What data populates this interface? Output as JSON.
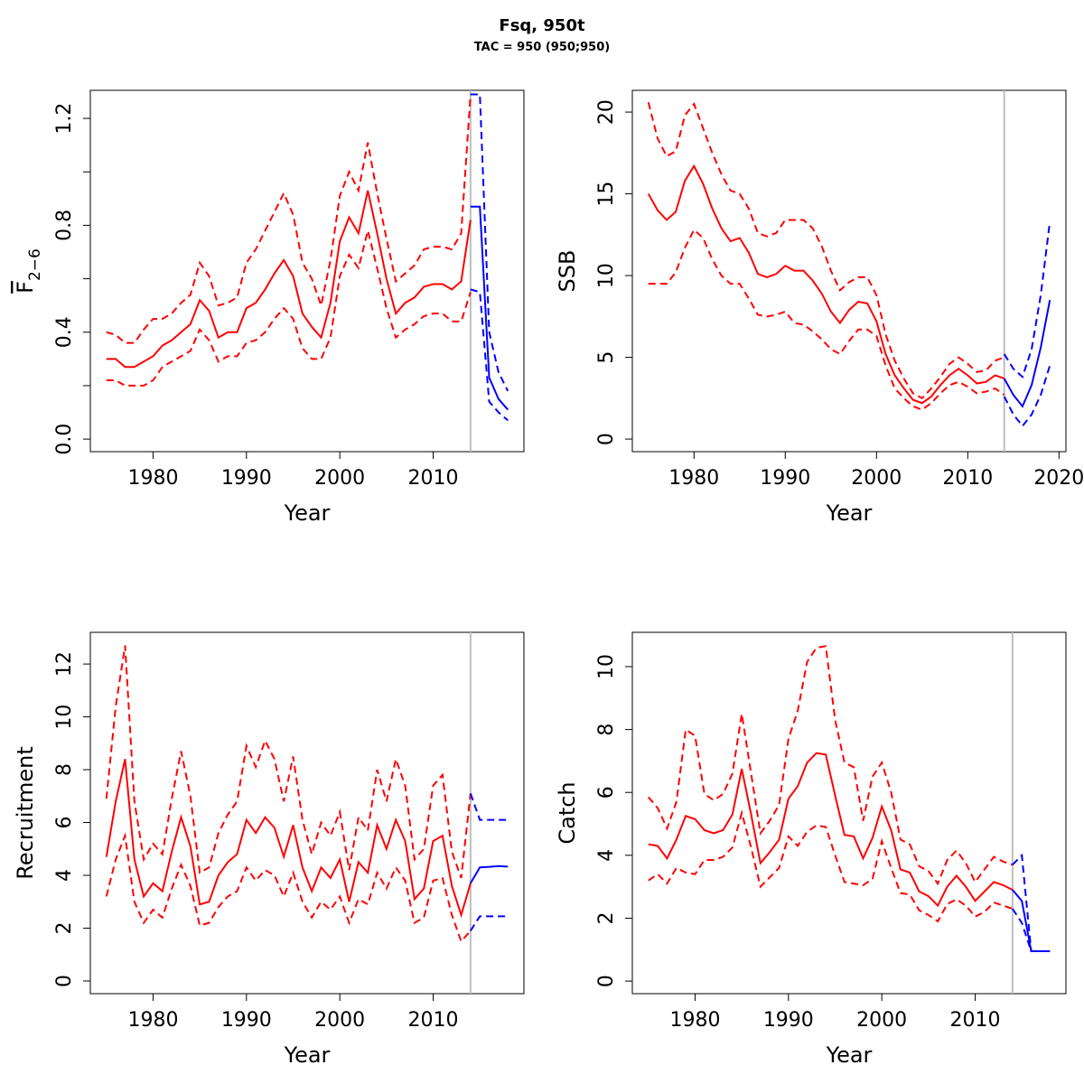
{
  "title": "Fsq, 950t",
  "subtitle": "TAC = 950 (950;950)",
  "chart_data": [
    {
      "type": "line",
      "xlabel": "Year",
      "ylabel": "F",
      "ylabel_subscript": "2−6",
      "xlim": [
        1973.28,
        2019.72
      ],
      "ylim": [
        -0.047,
        1.305
      ],
      "xticks": [
        1980,
        1990,
        2000,
        2010
      ],
      "yticks": [
        {
          "value": 0,
          "label": "0.0"
        },
        0.4,
        0.8,
        1.2
      ],
      "yminorticks": [
        0.2,
        0.6,
        1.0
      ],
      "vline": {
        "x": 2014,
        "color": "#bebebe"
      },
      "x": [
        1975,
        1976,
        1977,
        1978,
        1979,
        1980,
        1981,
        1982,
        1983,
        1984,
        1985,
        1986,
        1987,
        1988,
        1989,
        1990,
        1991,
        1992,
        1993,
        1994,
        1995,
        1996,
        1997,
        1998,
        1999,
        2000,
        2001,
        2002,
        2003,
        2004,
        2005,
        2006,
        2007,
        2008,
        2009,
        2010,
        2011,
        2012,
        2013,
        2014
      ],
      "series": [
        {
          "color": "#ff0000",
          "dashed": false,
          "values": [
            0.3,
            0.3,
            0.27,
            0.27,
            0.29,
            0.31,
            0.35,
            0.37,
            0.4,
            0.43,
            0.52,
            0.48,
            0.38,
            0.4,
            0.4,
            0.49,
            0.51,
            0.56,
            0.62,
            0.67,
            0.61,
            0.47,
            0.42,
            0.38,
            0.51,
            0.74,
            0.83,
            0.77,
            0.93,
            0.77,
            0.6,
            0.47,
            0.51,
            0.53,
            0.57,
            0.58,
            0.58,
            0.56,
            0.59,
            0.82
          ]
        },
        {
          "color": "#ff0000",
          "dashed": true,
          "values": [
            0.4,
            0.39,
            0.36,
            0.36,
            0.41,
            0.45,
            0.45,
            0.47,
            0.51,
            0.54,
            0.66,
            0.61,
            0.5,
            0.51,
            0.53,
            0.66,
            0.71,
            0.78,
            0.85,
            0.92,
            0.84,
            0.66,
            0.6,
            0.5,
            0.67,
            0.91,
            1.0,
            0.93,
            1.11,
            0.92,
            0.75,
            0.59,
            0.62,
            0.65,
            0.71,
            0.72,
            0.72,
            0.71,
            0.77,
            1.29
          ]
        },
        {
          "color": "#ff0000",
          "dashed": true,
          "values": [
            0.22,
            0.22,
            0.2,
            0.2,
            0.2,
            0.22,
            0.27,
            0.29,
            0.31,
            0.33,
            0.41,
            0.37,
            0.29,
            0.31,
            0.31,
            0.36,
            0.37,
            0.4,
            0.45,
            0.49,
            0.45,
            0.34,
            0.3,
            0.3,
            0.38,
            0.61,
            0.69,
            0.64,
            0.78,
            0.64,
            0.49,
            0.38,
            0.41,
            0.43,
            0.46,
            0.47,
            0.47,
            0.44,
            0.44,
            0.55
          ]
        },
        {
          "color": "#0000ff",
          "dashed": false,
          "x": [
            2014,
            2015,
            2016,
            2017,
            2018
          ],
          "values": [
            0.87,
            0.87,
            0.23,
            0.15,
            0.11
          ]
        },
        {
          "color": "#0000ff",
          "dashed": true,
          "x": [
            2014,
            2015,
            2016,
            2017,
            2018
          ],
          "values": [
            1.29,
            1.29,
            0.4,
            0.25,
            0.18
          ]
        },
        {
          "color": "#0000ff",
          "dashed": true,
          "x": [
            2014,
            2015,
            2016,
            2017,
            2018
          ],
          "values": [
            0.56,
            0.55,
            0.14,
            0.1,
            0.07
          ]
        }
      ]
    },
    {
      "type": "line",
      "xlabel": "Year",
      "ylabel": "SSB",
      "xlim": [
        1973.24,
        2020.76
      ],
      "ylim": [
        -0.77,
        21.33
      ],
      "xticks": [
        1980,
        1990,
        2000,
        2010,
        2020
      ],
      "yticks": [
        0,
        5,
        10,
        15,
        20
      ],
      "vline": {
        "x": 2014,
        "color": "#bebebe"
      },
      "x": [
        1975,
        1976,
        1977,
        1978,
        1979,
        1980,
        1981,
        1982,
        1983,
        1984,
        1985,
        1986,
        1987,
        1988,
        1989,
        1990,
        1991,
        1992,
        1993,
        1994,
        1995,
        1996,
        1997,
        1998,
        1999,
        2000,
        2001,
        2002,
        2003,
        2004,
        2005,
        2006,
        2007,
        2008,
        2009,
        2010,
        2011,
        2012,
        2013,
        2014
      ],
      "series": [
        {
          "color": "#ff0000",
          "dashed": false,
          "values": [
            15.0,
            14.0,
            13.4,
            13.9,
            15.8,
            16.7,
            15.6,
            14.1,
            12.9,
            12.1,
            12.3,
            11.4,
            10.1,
            9.9,
            10.1,
            10.6,
            10.3,
            10.3,
            9.7,
            8.9,
            7.8,
            7.1,
            7.9,
            8.4,
            8.3,
            7.2,
            5.2,
            3.9,
            3.1,
            2.4,
            2.2,
            2.6,
            3.3,
            3.9,
            4.3,
            3.9,
            3.4,
            3.5,
            3.9,
            3.7
          ]
        },
        {
          "color": "#ff0000",
          "dashed": true,
          "values": [
            20.6,
            18.4,
            17.3,
            17.6,
            19.8,
            20.5,
            19.0,
            17.5,
            16.2,
            15.2,
            15.0,
            14.1,
            12.6,
            12.4,
            12.6,
            13.4,
            13.4,
            13.4,
            12.9,
            11.8,
            10.3,
            9.1,
            9.6,
            9.9,
            9.9,
            8.8,
            6.4,
            4.8,
            3.7,
            2.8,
            2.5,
            3.1,
            3.8,
            4.6,
            5.0,
            4.6,
            4.1,
            4.2,
            4.8,
            5.0
          ]
        },
        {
          "color": "#ff0000",
          "dashed": true,
          "values": [
            9.5,
            9.5,
            9.5,
            10.2,
            11.7,
            12.8,
            12.3,
            11.0,
            10.0,
            9.5,
            9.5,
            8.6,
            7.6,
            7.5,
            7.6,
            7.8,
            7.1,
            7.0,
            6.6,
            6.1,
            5.5,
            5.2,
            6.0,
            6.7,
            6.7,
            6.3,
            4.5,
            3.1,
            2.5,
            2.0,
            1.8,
            2.2,
            2.8,
            3.3,
            3.5,
            3.2,
            2.8,
            2.9,
            3.1,
            2.7
          ]
        },
        {
          "color": "#0000ff",
          "dashed": false,
          "x": [
            2014,
            2015,
            2016,
            2017,
            2018,
            2019
          ],
          "values": [
            3.7,
            2.7,
            2.0,
            3.3,
            5.6,
            8.5
          ]
        },
        {
          "color": "#0000ff",
          "dashed": true,
          "x": [
            2014,
            2015,
            2016,
            2017,
            2018,
            2019
          ],
          "values": [
            5.2,
            4.3,
            3.8,
            5.5,
            8.8,
            13.3
          ]
        },
        {
          "color": "#0000ff",
          "dashed": true,
          "x": [
            2014,
            2015,
            2016,
            2017,
            2018,
            2019
          ],
          "values": [
            2.6,
            1.5,
            0.8,
            1.5,
            2.7,
            4.5
          ]
        }
      ]
    },
    {
      "type": "line",
      "xlabel": "Year",
      "ylabel": "Recruitment",
      "xlim": [
        1973.28,
        2019.72
      ],
      "ylim": [
        -0.48,
        13.2
      ],
      "xticks": [
        1980,
        1990,
        2000,
        2010
      ],
      "yticks": [
        0,
        2,
        4,
        6,
        8,
        10,
        12
      ],
      "vline": {
        "x": 2014,
        "color": "#bebebe"
      },
      "x": [
        1975,
        1976,
        1977,
        1978,
        1979,
        1980,
        1981,
        1982,
        1983,
        1984,
        1985,
        1986,
        1987,
        1988,
        1989,
        1990,
        1991,
        1992,
        1993,
        1994,
        1995,
        1996,
        1997,
        1998,
        1999,
        2000,
        2001,
        2002,
        2003,
        2004,
        2005,
        2006,
        2007,
        2008,
        2009,
        2010,
        2011,
        2012,
        2013,
        2014
      ],
      "series": [
        {
          "color": "#ff0000",
          "dashed": false,
          "values": [
            4.7,
            6.8,
            8.4,
            4.6,
            3.2,
            3.7,
            3.4,
            4.9,
            6.2,
            5.1,
            2.9,
            3.0,
            4.0,
            4.5,
            4.8,
            6.1,
            5.6,
            6.2,
            5.8,
            4.7,
            5.9,
            4.3,
            3.4,
            4.3,
            3.9,
            4.6,
            3.0,
            4.5,
            4.1,
            5.9,
            5.0,
            6.1,
            5.3,
            3.1,
            3.5,
            5.3,
            5.5,
            3.6,
            2.5,
            3.7
          ]
        },
        {
          "color": "#ff0000",
          "dashed": true,
          "values": [
            6.9,
            10.4,
            12.7,
            6.8,
            4.6,
            5.2,
            4.8,
            6.9,
            8.7,
            7.0,
            4.1,
            4.3,
            5.6,
            6.3,
            6.8,
            8.9,
            8.1,
            9.1,
            8.4,
            6.8,
            8.5,
            6.1,
            4.8,
            6.0,
            5.5,
            6.4,
            4.2,
            6.2,
            5.7,
            8.0,
            6.8,
            8.4,
            7.4,
            4.6,
            5.0,
            7.4,
            7.8,
            4.9,
            3.9,
            7.1
          ]
        },
        {
          "color": "#ff0000",
          "dashed": true,
          "values": [
            3.2,
            4.6,
            5.5,
            3.0,
            2.2,
            2.7,
            2.4,
            3.5,
            4.4,
            3.6,
            2.1,
            2.2,
            2.8,
            3.2,
            3.4,
            4.3,
            3.8,
            4.2,
            4.0,
            3.2,
            4.1,
            3.0,
            2.4,
            3.0,
            2.7,
            3.2,
            2.2,
            3.1,
            2.9,
            4.1,
            3.5,
            4.3,
            3.8,
            2.2,
            2.4,
            3.8,
            3.9,
            2.5,
            1.5,
            1.9
          ]
        },
        {
          "color": "#0000ff",
          "dashed": false,
          "x": [
            2014,
            2015,
            2016,
            2017,
            2018
          ],
          "values": [
            3.7,
            4.3,
            4.32,
            4.35,
            4.33
          ]
        },
        {
          "color": "#0000ff",
          "dashed": true,
          "x": [
            2014,
            2015,
            2016,
            2017,
            2018
          ],
          "values": [
            7.1,
            6.1,
            6.1,
            6.1,
            6.1
          ]
        },
        {
          "color": "#0000ff",
          "dashed": true,
          "x": [
            2014,
            2015,
            2016,
            2017,
            2018
          ],
          "values": [
            1.9,
            2.45,
            2.45,
            2.45,
            2.45
          ]
        }
      ]
    },
    {
      "type": "line",
      "xlabel": "Year",
      "ylabel": "Catch",
      "xlim": [
        1973.28,
        2019.72
      ],
      "ylim": [
        -0.4,
        11.09
      ],
      "xticks": [
        1980,
        1990,
        2000,
        2010
      ],
      "yticks": [
        0,
        2,
        4,
        6,
        8,
        10
      ],
      "vline": {
        "x": 2014,
        "color": "#bebebe"
      },
      "x": [
        1975,
        1976,
        1977,
        1978,
        1979,
        1980,
        1981,
        1982,
        1983,
        1984,
        1985,
        1986,
        1987,
        1988,
        1989,
        1990,
        1991,
        1992,
        1993,
        1994,
        1995,
        1996,
        1997,
        1998,
        1999,
        2000,
        2001,
        2002,
        2003,
        2004,
        2005,
        2006,
        2007,
        2008,
        2009,
        2010,
        2011,
        2012,
        2013,
        2014
      ],
      "series": [
        {
          "color": "#ff0000",
          "dashed": false,
          "values": [
            4.35,
            4.3,
            3.9,
            4.5,
            5.25,
            5.15,
            4.8,
            4.7,
            4.8,
            5.3,
            6.75,
            5.3,
            3.75,
            4.1,
            4.5,
            5.8,
            6.2,
            6.95,
            7.25,
            7.2,
            5.9,
            4.65,
            4.6,
            3.9,
            4.55,
            5.55,
            4.8,
            3.55,
            3.45,
            2.85,
            2.7,
            2.4,
            3.0,
            3.35,
            3.0,
            2.55,
            2.85,
            3.15,
            3.05,
            2.9
          ]
        },
        {
          "color": "#ff0000",
          "dashed": true,
          "values": [
            5.85,
            5.5,
            4.85,
            5.7,
            8.0,
            7.8,
            5.95,
            5.75,
            5.95,
            6.6,
            8.5,
            6.6,
            4.7,
            5.1,
            5.6,
            7.7,
            8.6,
            10.15,
            10.6,
            10.65,
            8.3,
            6.95,
            6.8,
            5.1,
            6.5,
            6.95,
            6.0,
            4.5,
            4.35,
            3.65,
            3.5,
            3.1,
            3.85,
            4.15,
            3.75,
            3.15,
            3.55,
            3.95,
            3.8,
            3.7
          ]
        },
        {
          "color": "#ff0000",
          "dashed": true,
          "values": [
            3.2,
            3.4,
            3.1,
            3.6,
            3.45,
            3.4,
            3.85,
            3.85,
            3.95,
            4.25,
            5.35,
            4.25,
            3.0,
            3.3,
            3.6,
            4.6,
            4.3,
            4.75,
            4.95,
            4.9,
            4.0,
            3.15,
            3.1,
            3.05,
            3.25,
            4.45,
            3.6,
            2.8,
            2.75,
            2.25,
            2.1,
            1.9,
            2.45,
            2.6,
            2.4,
            2.05,
            2.2,
            2.5,
            2.4,
            2.3
          ]
        },
        {
          "color": "#0000ff",
          "dashed": false,
          "x": [
            2014,
            2015,
            2016,
            2017,
            2018
          ],
          "values": [
            2.9,
            2.55,
            0.95,
            0.95,
            0.95
          ]
        },
        {
          "color": "#0000ff",
          "dashed": true,
          "x": [
            2014,
            2015,
            2016,
            2017,
            2018
          ],
          "values": [
            3.7,
            4.0,
            0.95,
            0.95,
            0.95
          ]
        },
        {
          "color": "#0000ff",
          "dashed": true,
          "x": [
            2014,
            2015,
            2016,
            2017,
            2018
          ],
          "values": [
            2.3,
            1.85,
            0.95,
            0.95,
            0.95
          ]
        }
      ]
    }
  ]
}
